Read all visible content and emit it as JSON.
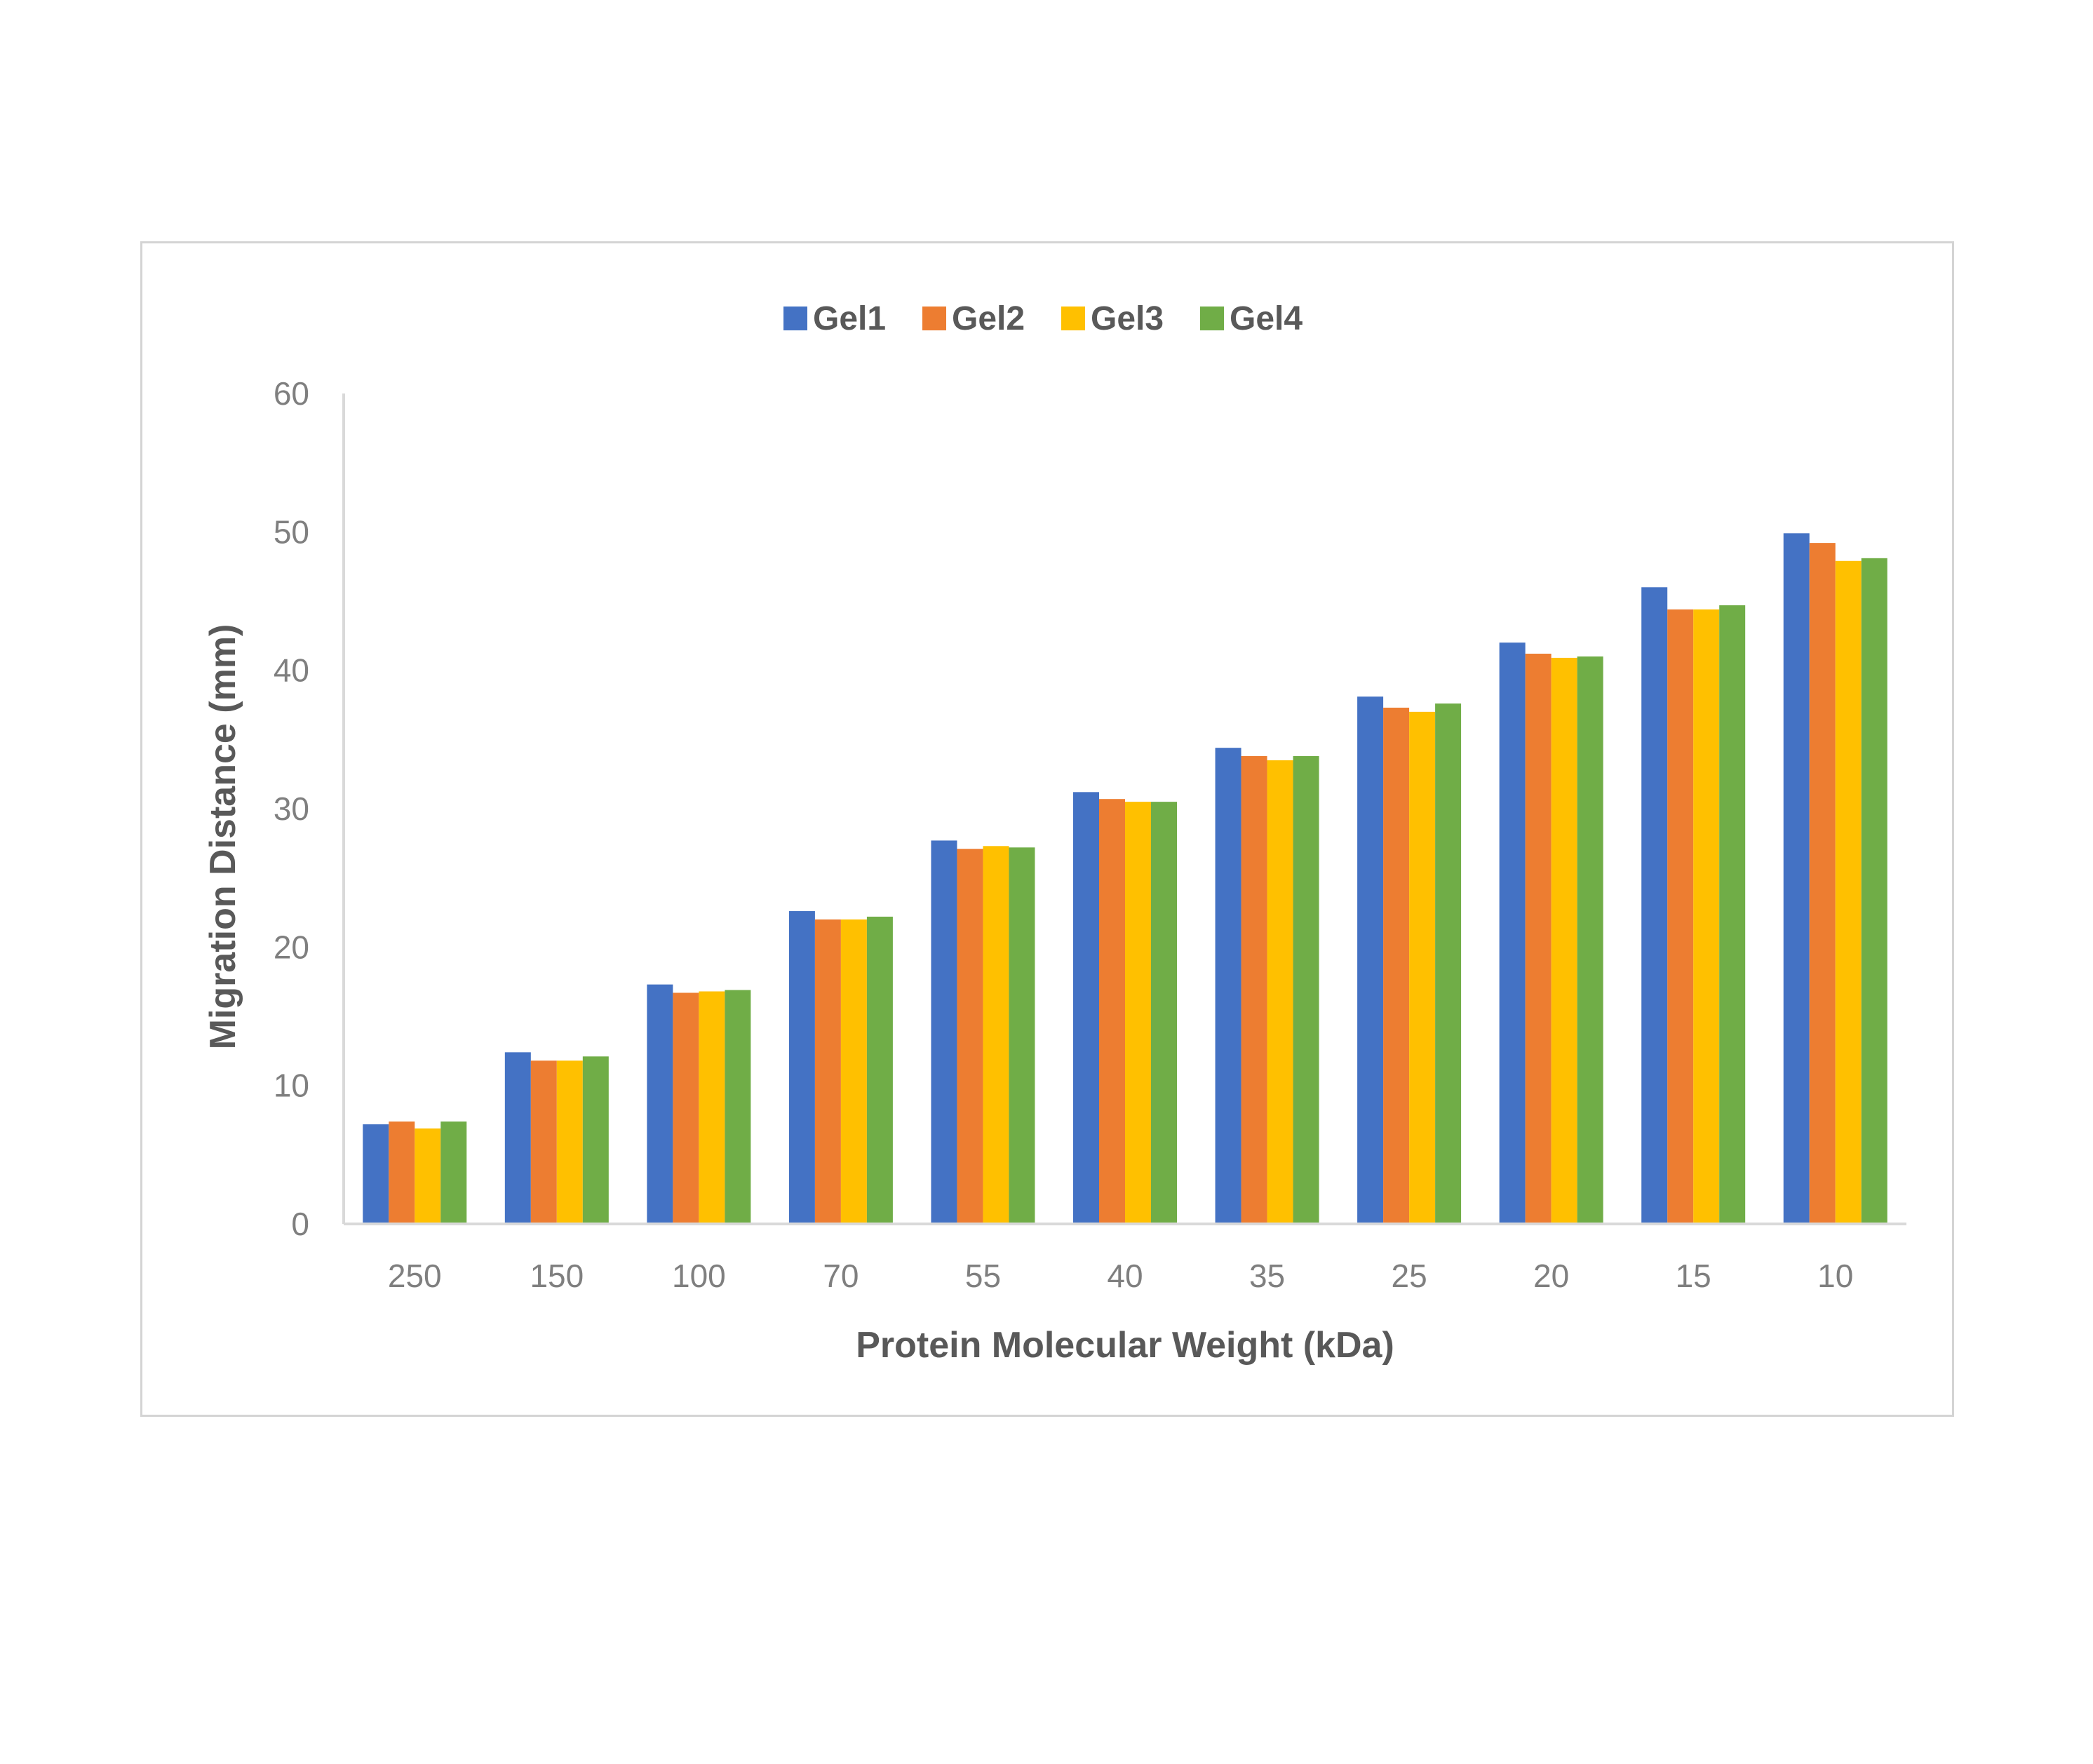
{
  "chart_data": {
    "type": "bar",
    "title": "",
    "xlabel": "Protein Molecular Weight (kDa)",
    "ylabel": "Migration Distance (mm)",
    "ylim": [
      0,
      60
    ],
    "yticks": [
      "0",
      "10",
      "20",
      "30",
      "40",
      "50",
      "60"
    ],
    "categories": [
      "250",
      "150",
      "100",
      "70",
      "55",
      "40",
      "35",
      "25",
      "20",
      "15",
      "10"
    ],
    "series": [
      {
        "name": "Gel1",
        "color": "#4472c4",
        "values": [
          7.2,
          12.4,
          17.3,
          22.6,
          27.7,
          31.2,
          34.4,
          38.1,
          42.0,
          46.0,
          49.9
        ]
      },
      {
        "name": "Gel2",
        "color": "#ed7d31",
        "values": [
          7.4,
          11.8,
          16.7,
          22.0,
          27.1,
          30.7,
          33.8,
          37.3,
          41.2,
          44.4,
          49.2
        ]
      },
      {
        "name": "Gel3",
        "color": "#ffc000",
        "values": [
          6.9,
          11.8,
          16.8,
          22.0,
          27.3,
          30.5,
          33.5,
          37.0,
          40.9,
          44.4,
          47.9
        ]
      },
      {
        "name": "Gel4",
        "color": "#70ad47",
        "values": [
          7.4,
          12.1,
          16.9,
          22.2,
          27.2,
          30.5,
          33.8,
          37.6,
          41.0,
          44.7,
          48.1
        ]
      }
    ],
    "grid": false,
    "legend_position": "top"
  }
}
